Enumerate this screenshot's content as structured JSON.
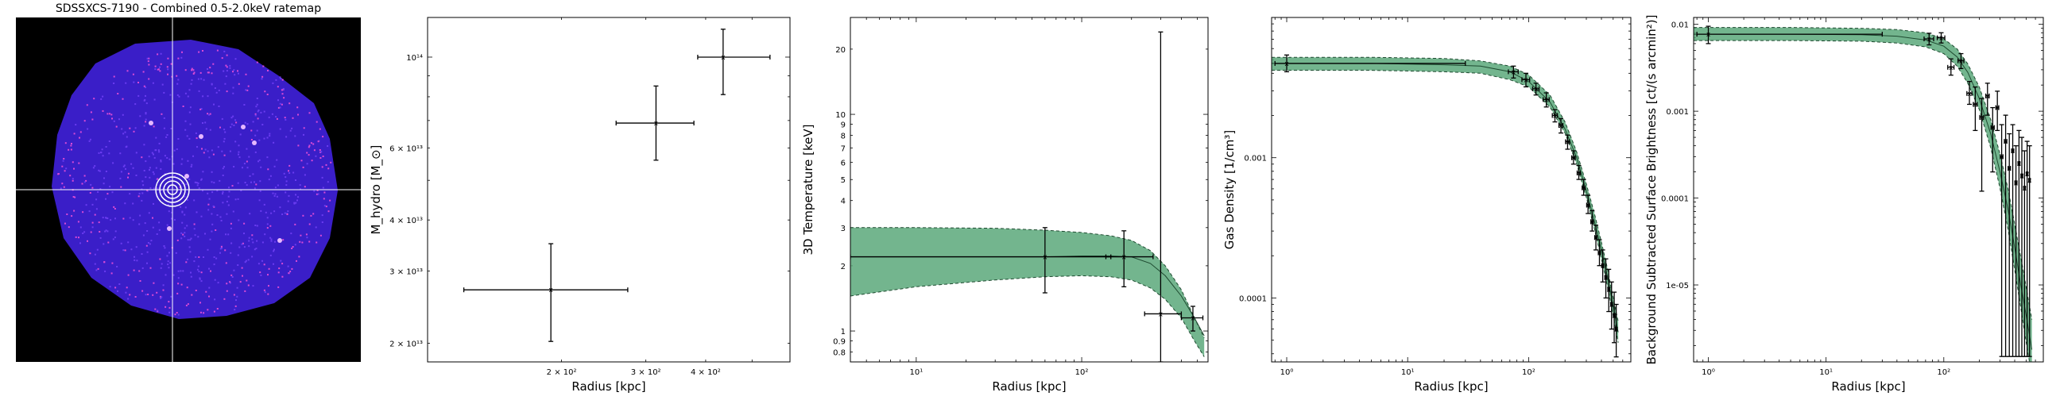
{
  "figure": {
    "image_panel": {
      "title": "SDSSXCS-7190 - Combined 0.5-2.0keV ratemap",
      "colors": {
        "background": "#000000",
        "cluster": "#3a1ec8",
        "hot_pixels": "#d94ad6",
        "crosshair": "#ffffff"
      }
    }
  },
  "chart_data": [
    {
      "type": "scatter",
      "panel": "hydrostatic-mass",
      "xlabel": "Radius [kpc]",
      "ylabel": "M_hydro [M_⊙]",
      "xscale": "log",
      "yscale": "log",
      "xlim": [
        105,
        600
      ],
      "ylim": [
        18000000000000.0,
        125000000000000.0
      ],
      "xticks": [
        {
          "v": 200,
          "label": "2 × 10²"
        },
        {
          "v": 300,
          "label": "3 × 10²"
        },
        {
          "v": 400,
          "label": "4 × 10²"
        }
      ],
      "yticks": [
        {
          "v": 20000000000000.0,
          "label": "2 × 10¹³"
        },
        {
          "v": 30000000000000.0,
          "label": "3 × 10¹³"
        },
        {
          "v": 40000000000000.0,
          "label": "4 × 10¹³"
        },
        {
          "v": 60000000000000.0,
          "label": "6 × 10¹³"
        },
        {
          "v": 100000000000000.0,
          "label": "10¹⁴"
        }
      ],
      "points": [
        {
          "x": 190,
          "y": 27000000000000.0,
          "xerr": [
            125,
            275
          ],
          "yerr": [
            20200000000000.0,
            35000000000000.0
          ]
        },
        {
          "x": 315,
          "y": 69000000000000.0,
          "xerr": [
            260,
            378
          ],
          "yerr": [
            56000000000000.0,
            85000000000000.0
          ]
        },
        {
          "x": 435,
          "y": 100000000000000.0,
          "xerr": [
            385,
            545
          ],
          "yerr": [
            81000000000000.0,
            117000000000000.0
          ]
        }
      ]
    },
    {
      "type": "line",
      "panel": "3d-temperature",
      "xlabel": "Radius [kpc]",
      "ylabel": "3D Temperature [keV]",
      "xscale": "log",
      "yscale": "log",
      "xlim": [
        4,
        580
      ],
      "ylim": [
        0.72,
        28
      ],
      "xticks": [
        {
          "v": 10,
          "label": "10¹"
        },
        {
          "v": 100,
          "label": "10²"
        }
      ],
      "yticks": [
        {
          "v": 0.8,
          "label": "0.8"
        },
        {
          "v": 0.9,
          "label": "0.9"
        },
        {
          "v": 1,
          "label": "1"
        },
        {
          "v": 2,
          "label": "2"
        },
        {
          "v": 3,
          "label": "3"
        },
        {
          "v": 4,
          "label": "4"
        },
        {
          "v": 5,
          "label": "5"
        },
        {
          "v": 6,
          "label": "6"
        },
        {
          "v": 7,
          "label": "7"
        },
        {
          "v": 8,
          "label": "8"
        },
        {
          "v": 9,
          "label": "9"
        },
        {
          "v": 10,
          "label": "10"
        },
        {
          "v": 20,
          "label": "20"
        }
      ],
      "model_band": {
        "x": [
          4,
          10,
          30,
          60,
          100,
          150,
          200,
          260,
          320,
          400,
          480,
          550
        ],
        "upper": [
          3.0,
          3.0,
          2.98,
          2.92,
          2.85,
          2.75,
          2.62,
          2.35,
          2.0,
          1.55,
          1.15,
          0.93
        ],
        "lower": [
          1.45,
          1.6,
          1.72,
          1.78,
          1.8,
          1.78,
          1.72,
          1.58,
          1.4,
          1.15,
          0.9,
          0.76
        ],
        "median": [
          2.2,
          2.2,
          2.2,
          2.2,
          2.22,
          2.22,
          2.2,
          2.05,
          1.8,
          1.45,
          1.15,
          0.95
        ]
      },
      "points": [
        {
          "x": 60,
          "y": 2.2,
          "xerr": [
            4,
            150
          ],
          "yerr": [
            1.5,
            3.0
          ]
        },
        {
          "x": 180,
          "y": 2.2,
          "xerr": [
            140,
            270
          ],
          "yerr": [
            1.6,
            2.9
          ]
        },
        {
          "x": 300,
          "y": 1.2,
          "xerr": [
            240,
            400
          ],
          "yerr": [
            0.72,
            24
          ]
        },
        {
          "x": 470,
          "y": 1.15,
          "xerr": [
            400,
            540
          ],
          "yerr": [
            1.0,
            1.3
          ]
        }
      ]
    },
    {
      "type": "line",
      "panel": "gas-density",
      "xlabel": "Radius [kpc]",
      "ylabel": "Gas Density [1/cm³]",
      "xscale": "log",
      "yscale": "log",
      "xlim": [
        0.75,
        700
      ],
      "ylim": [
        3.5e-05,
        0.01
      ],
      "xticks": [
        {
          "v": 1,
          "label": "10⁰"
        },
        {
          "v": 10,
          "label": "10¹"
        },
        {
          "v": 100,
          "label": "10²"
        }
      ],
      "yticks": [
        {
          "v": 0.001,
          "label": "0.001"
        },
        {
          "v": 0.0001,
          "label": "0.0001"
        }
      ],
      "model_band": {
        "x": [
          0.75,
          1,
          5,
          20,
          40,
          70,
          100,
          150,
          200,
          250,
          300,
          350,
          400,
          450,
          500,
          550
        ],
        "upper": [
          0.0052,
          0.0052,
          0.0052,
          0.0051,
          0.0049,
          0.0045,
          0.0039,
          0.0028,
          0.0018,
          0.0011,
          0.00065,
          0.0004,
          0.00025,
          0.00016,
          0.0001,
          6.8e-05
        ],
        "lower": [
          0.0042,
          0.0042,
          0.0042,
          0.0041,
          0.004,
          0.0036,
          0.0032,
          0.0023,
          0.0015,
          0.0009,
          0.00052,
          0.00031,
          0.00019,
          0.00012,
          7.5e-05,
          4.8e-05
        ],
        "median": [
          0.0047,
          0.0047,
          0.0047,
          0.0046,
          0.0045,
          0.0041,
          0.0035,
          0.0025,
          0.0016,
          0.001,
          0.00058,
          0.00035,
          0.00022,
          0.00014,
          8.7e-05,
          5.7e-05
        ]
      },
      "points": [
        {
          "x": 1,
          "y": 0.0047,
          "xerr": [
            0.8,
            30
          ],
          "yerr": [
            0.0041,
            0.0054
          ]
        },
        {
          "x": 75,
          "y": 0.0041,
          "xerr": [
            68,
            82
          ],
          "yerr": [
            0.0037,
            0.0045
          ]
        },
        {
          "x": 95,
          "y": 0.0036,
          "xerr": [
            88,
            102
          ],
          "yerr": [
            0.0032,
            0.004
          ]
        },
        {
          "x": 115,
          "y": 0.0031,
          "xerr": [
            108,
            122
          ],
          "yerr": [
            0.0028,
            0.0034
          ]
        },
        {
          "x": 140,
          "y": 0.0026,
          "xerr": [
            132,
            148
          ],
          "yerr": [
            0.0023,
            0.0029
          ]
        },
        {
          "x": 165,
          "y": 0.002,
          "xerr": [
            157,
            173
          ],
          "yerr": [
            0.0018,
            0.0022
          ]
        },
        {
          "x": 185,
          "y": 0.0017,
          "xerr": [
            178,
            192
          ],
          "yerr": [
            0.0015,
            0.0019
          ]
        },
        {
          "x": 210,
          "y": 0.0013,
          "xerr": [
            202,
            218
          ],
          "yerr": [
            0.00115,
            0.00145
          ]
        },
        {
          "x": 235,
          "y": 0.001,
          "xerr": [
            227,
            243
          ],
          "yerr": [
            0.0009,
            0.00112
          ]
        },
        {
          "x": 260,
          "y": 0.00078,
          "xerr": [
            252,
            268
          ],
          "yerr": [
            0.0007,
            0.00088
          ]
        },
        {
          "x": 285,
          "y": 0.00061,
          "xerr": [
            277,
            293
          ],
          "yerr": [
            0.00054,
            0.0007
          ]
        },
        {
          "x": 310,
          "y": 0.00046,
          "xerr": [
            302,
            318
          ],
          "yerr": [
            0.0004,
            0.00054
          ]
        },
        {
          "x": 335,
          "y": 0.00035,
          "xerr": [
            327,
            343
          ],
          "yerr": [
            0.0003,
            0.00042
          ]
        },
        {
          "x": 360,
          "y": 0.00027,
          "xerr": [
            352,
            368
          ],
          "yerr": [
            0.00022,
            0.00033
          ]
        },
        {
          "x": 385,
          "y": 0.00021,
          "xerr": [
            377,
            393
          ],
          "yerr": [
            0.00017,
            0.00026
          ]
        },
        {
          "x": 410,
          "y": 0.00017,
          "xerr": [
            402,
            418
          ],
          "yerr": [
            0.00013,
            0.00022
          ]
        },
        {
          "x": 435,
          "y": 0.00014,
          "xerr": [
            427,
            443
          ],
          "yerr": [
            0.0001,
            0.00019
          ]
        },
        {
          "x": 460,
          "y": 0.000115,
          "xerr": [
            452,
            468
          ],
          "yerr": [
            8e-05,
            0.00016
          ]
        },
        {
          "x": 485,
          "y": 9e-05,
          "xerr": [
            477,
            493
          ],
          "yerr": [
            6e-05,
            0.00013
          ]
        },
        {
          "x": 510,
          "y": 7.5e-05,
          "xerr": [
            502,
            518
          ],
          "yerr": [
            4.8e-05,
            0.00011
          ]
        },
        {
          "x": 530,
          "y": 6e-05,
          "xerr": [
            522,
            538
          ],
          "yerr": [
            3.8e-05,
            9e-05
          ]
        }
      ]
    },
    {
      "type": "line",
      "panel": "surface-brightness",
      "xlabel": "Radius [kpc]",
      "ylabel": "Background Subtracted Surface Brightness [ct/(s arcmin²)]",
      "xscale": "log",
      "yscale": "log",
      "xlim": [
        0.75,
        700
      ],
      "ylim": [
        1.3e-06,
        0.012
      ],
      "xticks": [
        {
          "v": 1,
          "label": "10⁰"
        },
        {
          "v": 10,
          "label": "10¹"
        },
        {
          "v": 100,
          "label": "10²"
        }
      ],
      "yticks": [
        {
          "v": 0.01,
          "label": "0.01"
        },
        {
          "v": 0.001,
          "label": "0.001"
        },
        {
          "v": 0.0001,
          "label": "0.0001"
        },
        {
          "v": 1e-05,
          "label": "1e-05"
        }
      ],
      "model_band": {
        "x": [
          0.75,
          1,
          5,
          20,
          40,
          70,
          100,
          130,
          160,
          200,
          250,
          300,
          350,
          400,
          450,
          500,
          560
        ],
        "upper": [
          0.0092,
          0.0092,
          0.0092,
          0.009,
          0.0087,
          0.008,
          0.0068,
          0.0052,
          0.0035,
          0.0019,
          0.0008,
          0.00032,
          0.00013,
          5e-05,
          2.1e-05,
          9.5e-06,
          4e-06
        ],
        "lower": [
          0.0065,
          0.0065,
          0.0065,
          0.0064,
          0.0061,
          0.0055,
          0.0046,
          0.0033,
          0.0021,
          0.00105,
          0.00038,
          0.00013,
          4.5e-05,
          1.5e-05,
          5.5e-06,
          2.2e-06,
          9e-07
        ],
        "median": [
          0.0077,
          0.0077,
          0.0077,
          0.0076,
          0.0073,
          0.0066,
          0.0056,
          0.0042,
          0.0028,
          0.0014,
          0.00055,
          0.0002,
          7.6e-05,
          2.7e-05,
          1e-05,
          4.5e-06,
          1.8e-06
        ]
      },
      "points": [
        {
          "x": 1,
          "y": 0.0077,
          "xerr": [
            0.8,
            30
          ],
          "yerr": [
            0.006,
            0.0095
          ]
        },
        {
          "x": 75,
          "y": 0.0068,
          "xerr": [
            68,
            82
          ],
          "yerr": [
            0.0058,
            0.0079
          ]
        },
        {
          "x": 95,
          "y": 0.007,
          "xerr": [
            88,
            102
          ],
          "yerr": [
            0.0061,
            0.008
          ]
        },
        {
          "x": 115,
          "y": 0.0032,
          "xerr": [
            108,
            122
          ],
          "yerr": [
            0.0026,
            0.004
          ]
        },
        {
          "x": 140,
          "y": 0.0038,
          "xerr": [
            132,
            148
          ],
          "yerr": [
            0.0031,
            0.0046
          ]
        },
        {
          "x": 165,
          "y": 0.0016,
          "xerr": [
            157,
            173
          ],
          "yerr": [
            0.0012,
            0.0022
          ]
        },
        {
          "x": 185,
          "y": 0.0012,
          "xerr": [
            178,
            192
          ],
          "yerr": [
            0.0006,
            0.0019
          ]
        },
        {
          "x": 210,
          "y": 0.00085,
          "xerr": [
            202,
            218
          ],
          "yerr": [
            0.00012,
            0.0014
          ]
        },
        {
          "x": 235,
          "y": 0.0015,
          "xerr": [
            227,
            243
          ],
          "yerr": [
            0.0009,
            0.0021
          ]
        },
        {
          "x": 260,
          "y": 0.00065,
          "xerr": [
            252,
            268
          ],
          "yerr": [
            0.0002,
            0.0011
          ]
        },
        {
          "x": 285,
          "y": 0.0011,
          "xerr": [
            277,
            293
          ],
          "yerr": [
            0.0006,
            0.0017
          ]
        },
        {
          "x": 310,
          "y": 0.0003,
          "xerr": [
            302,
            318
          ],
          "yerr": [
            1.5e-06,
            0.0007
          ]
        },
        {
          "x": 335,
          "y": 0.00045,
          "xerr": [
            327,
            343
          ],
          "yerr": [
            1.5e-06,
            0.0009
          ]
        },
        {
          "x": 360,
          "y": 0.00022,
          "xerr": [
            352,
            368
          ],
          "yerr": [
            1.5e-06,
            0.00055
          ]
        },
        {
          "x": 385,
          "y": 0.00035,
          "xerr": [
            377,
            393
          ],
          "yerr": [
            1.5e-06,
            0.0007
          ]
        },
        {
          "x": 410,
          "y": 0.00015,
          "xerr": [
            402,
            418
          ],
          "yerr": [
            1.5e-06,
            0.0004
          ]
        },
        {
          "x": 435,
          "y": 0.00025,
          "xerr": [
            427,
            443
          ],
          "yerr": [
            1.5e-06,
            0.0006
          ]
        },
        {
          "x": 460,
          "y": 0.00018,
          "xerr": [
            452,
            468
          ],
          "yerr": [
            1.5e-06,
            0.0005
          ]
        },
        {
          "x": 485,
          "y": 0.00013,
          "xerr": [
            477,
            493
          ],
          "yerr": [
            1.5e-06,
            0.00035
          ]
        },
        {
          "x": 510,
          "y": 0.00019,
          "xerr": [
            502,
            518
          ],
          "yerr": [
            1.5e-06,
            0.00045
          ]
        },
        {
          "x": 535,
          "y": 0.00016,
          "xerr": [
            527,
            543
          ],
          "yerr": [
            1.5e-06,
            0.0004
          ]
        }
      ]
    }
  ]
}
